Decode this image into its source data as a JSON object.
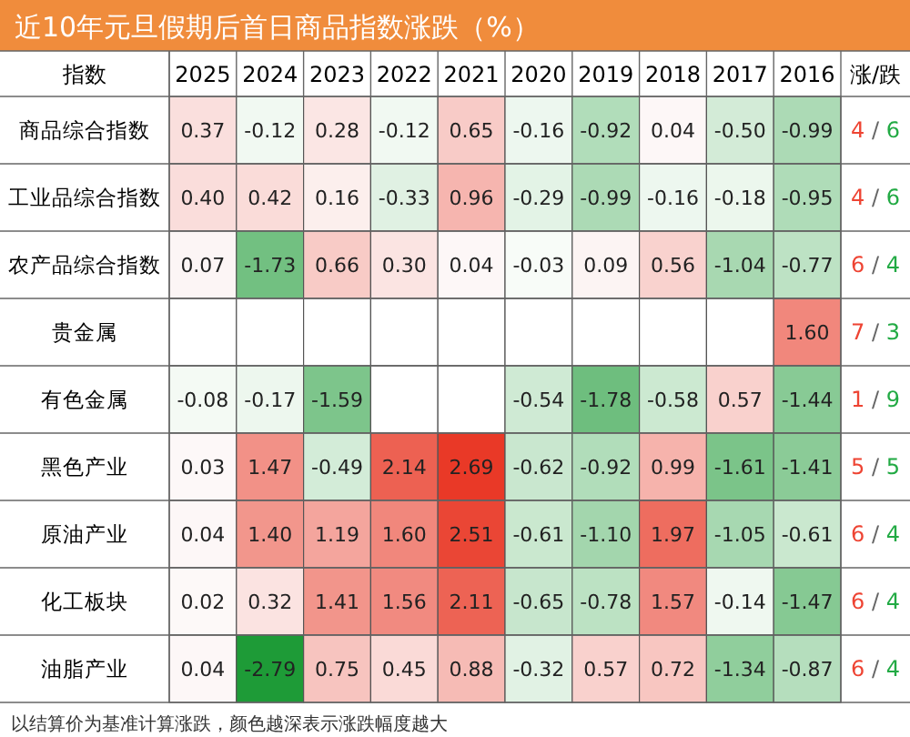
{
  "chart_data": {
    "type": "heatmap",
    "title": "近10年元旦假期后首日商品指数涨跌（%）",
    "ylabel": "指数",
    "y2label": "涨/跌",
    "categories": [
      "2025",
      "2024",
      "2023",
      "2022",
      "2021",
      "2020",
      "2019",
      "2018",
      "2017",
      "2016"
    ],
    "y_categories": [
      "商品综合指数",
      "工业品综合指数",
      "农产品综合指数",
      "贵金属",
      "有色金属",
      "黑色产业",
      "原油产业",
      "化工板块",
      "油脂产业"
    ],
    "y2_categories": [
      "4 / 6",
      "4 / 6",
      "6 / 4",
      "7 / 3",
      "1 / 9",
      "5 / 5",
      "6 / 4",
      "6 / 4",
      "6 / 4"
    ],
    "cells": [
      [
        0.37,
        -0.12,
        0.28,
        -0.12,
        0.65,
        -0.16,
        -0.92,
        0.04,
        -0.5,
        -0.99
      ],
      [
        0.4,
        0.42,
        0.16,
        -0.33,
        0.96,
        -0.29,
        -0.99,
        -0.16,
        -0.18,
        -0.95
      ],
      [
        0.07,
        -1.73,
        0.66,
        0.3,
        0.04,
        -0.03,
        0.09,
        0.56,
        -1.04,
        -0.77
      ],
      [
        null,
        null,
        null,
        null,
        null,
        null,
        null,
        null,
        null,
        1.6
      ],
      [
        -0.08,
        -0.17,
        -1.59,
        null,
        null,
        -0.54,
        -1.78,
        -0.58,
        0.57,
        -1.44
      ],
      [
        0.03,
        1.47,
        -0.49,
        2.14,
        2.69,
        -0.62,
        -0.92,
        0.99,
        -1.61,
        -1.41
      ],
      [
        0.04,
        1.4,
        1.19,
        1.6,
        2.51,
        -0.61,
        -1.1,
        1.97,
        -1.05,
        -0.61
      ],
      [
        0.02,
        0.32,
        1.41,
        1.56,
        2.11,
        -0.65,
        -0.78,
        1.57,
        -0.14,
        -1.47
      ],
      [
        0.04,
        -2.79,
        0.75,
        0.45,
        0.88,
        -0.32,
        0.57,
        0.72,
        -1.34,
        -0.87
      ]
    ],
    "cell_labels": [
      [
        "0.37",
        "-0.12",
        "0.28",
        "-0.12",
        "0.65",
        "-0.16",
        "-0.92",
        "0.04",
        "-0.50",
        "-0.99"
      ],
      [
        "0.40",
        "0.42",
        "0.16",
        "-0.33",
        "0.96",
        "-0.29",
        "-0.99",
        "-0.16",
        "-0.18",
        "-0.95"
      ],
      [
        "0.07",
        "-1.73",
        "0.66",
        "0.30",
        "0.04",
        "-0.03",
        "0.09",
        "0.56",
        "-1.04",
        "-0.77"
      ],
      [
        null,
        null,
        null,
        null,
        null,
        null,
        null,
        null,
        null,
        "1.60"
      ],
      [
        "-0.08",
        "-0.17",
        "-1.59",
        null,
        null,
        "-0.54",
        "-1.78",
        "-0.58",
        "0.57",
        "-1.44"
      ],
      [
        "0.03",
        "1.47",
        "-0.49",
        "2.14",
        "2.69",
        "-0.62",
        "-0.92",
        "0.99",
        "-1.61",
        "-1.41"
      ],
      [
        "0.04",
        "1.40",
        "1.19",
        "1.60",
        "2.51",
        "-0.61",
        "-1.10",
        "1.97",
        "-1.05",
        "-0.61"
      ],
      [
        "0.02",
        "0.32",
        "1.41",
        "1.56",
        "2.11",
        "-0.65",
        "-0.78",
        "1.57",
        "-0.14",
        "-1.47"
      ],
      [
        "0.04",
        "-2.79",
        "0.75",
        "0.45",
        "0.88",
        "-0.32",
        "0.57",
        "0.72",
        "-1.34",
        "-0.87"
      ]
    ],
    "annotations": [
      "以结算价为基准计算涨跌，颜色越深表示涨跌幅度越大"
    ]
  }
}
